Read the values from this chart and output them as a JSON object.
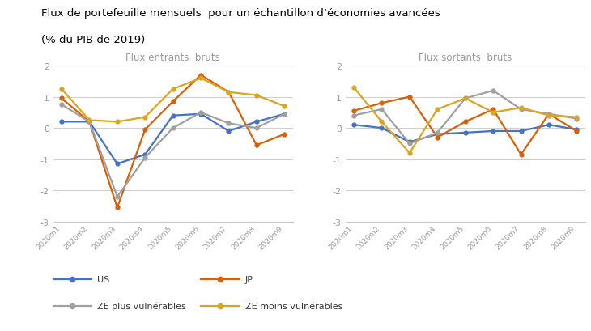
{
  "title_line1": "Flux de portefeuille mensuels  pour un échantillon d’économies avancées",
  "title_line2": "(% du PIB de 2019)",
  "subtitle_left": "Flux entrants  bruts",
  "subtitle_right": "Flux sortants  bruts",
  "x_labels": [
    "2020m1",
    "2020m2",
    "2020m3",
    "2020m4",
    "2020m5",
    "2020m6",
    "2020m7",
    "2020m8",
    "2020m9"
  ],
  "ylim": [
    -3,
    2
  ],
  "yticks": [
    -3,
    -2,
    -1,
    0,
    1,
    2
  ],
  "legend": [
    "US",
    "JP",
    "ZE plus vulnérables",
    "ZE moins vulnérables"
  ],
  "colors": {
    "US": "#4472C4",
    "JP": "#D95F02",
    "ZE_plus": "#A0A0A0",
    "ZE_moins": "#DAA520"
  },
  "entrants": {
    "US": [
      0.2,
      0.2,
      -1.15,
      -0.85,
      0.4,
      0.45,
      -0.1,
      0.2,
      0.45
    ],
    "JP": [
      0.95,
      0.2,
      -2.55,
      -0.05,
      0.85,
      1.7,
      1.15,
      -0.55,
      -0.2
    ],
    "ZE_plus": [
      0.75,
      0.2,
      -2.2,
      -0.95,
      0.0,
      0.5,
      0.15,
      0.0,
      0.45
    ],
    "ZE_moins": [
      1.25,
      0.25,
      0.2,
      0.35,
      1.25,
      1.6,
      1.15,
      1.05,
      0.7
    ]
  },
  "sortants": {
    "US": [
      0.1,
      0.0,
      -0.45,
      -0.2,
      -0.15,
      -0.1,
      -0.1,
      0.1,
      -0.05
    ],
    "JP": [
      0.55,
      0.8,
      1.0,
      -0.3,
      0.2,
      0.6,
      -0.85,
      0.45,
      -0.1
    ],
    "ZE_plus": [
      0.4,
      0.6,
      -0.5,
      -0.15,
      0.95,
      1.2,
      0.6,
      0.45,
      0.3
    ],
    "ZE_moins": [
      1.3,
      0.2,
      -0.8,
      0.6,
      0.95,
      0.5,
      0.65,
      0.4,
      0.35
    ]
  }
}
